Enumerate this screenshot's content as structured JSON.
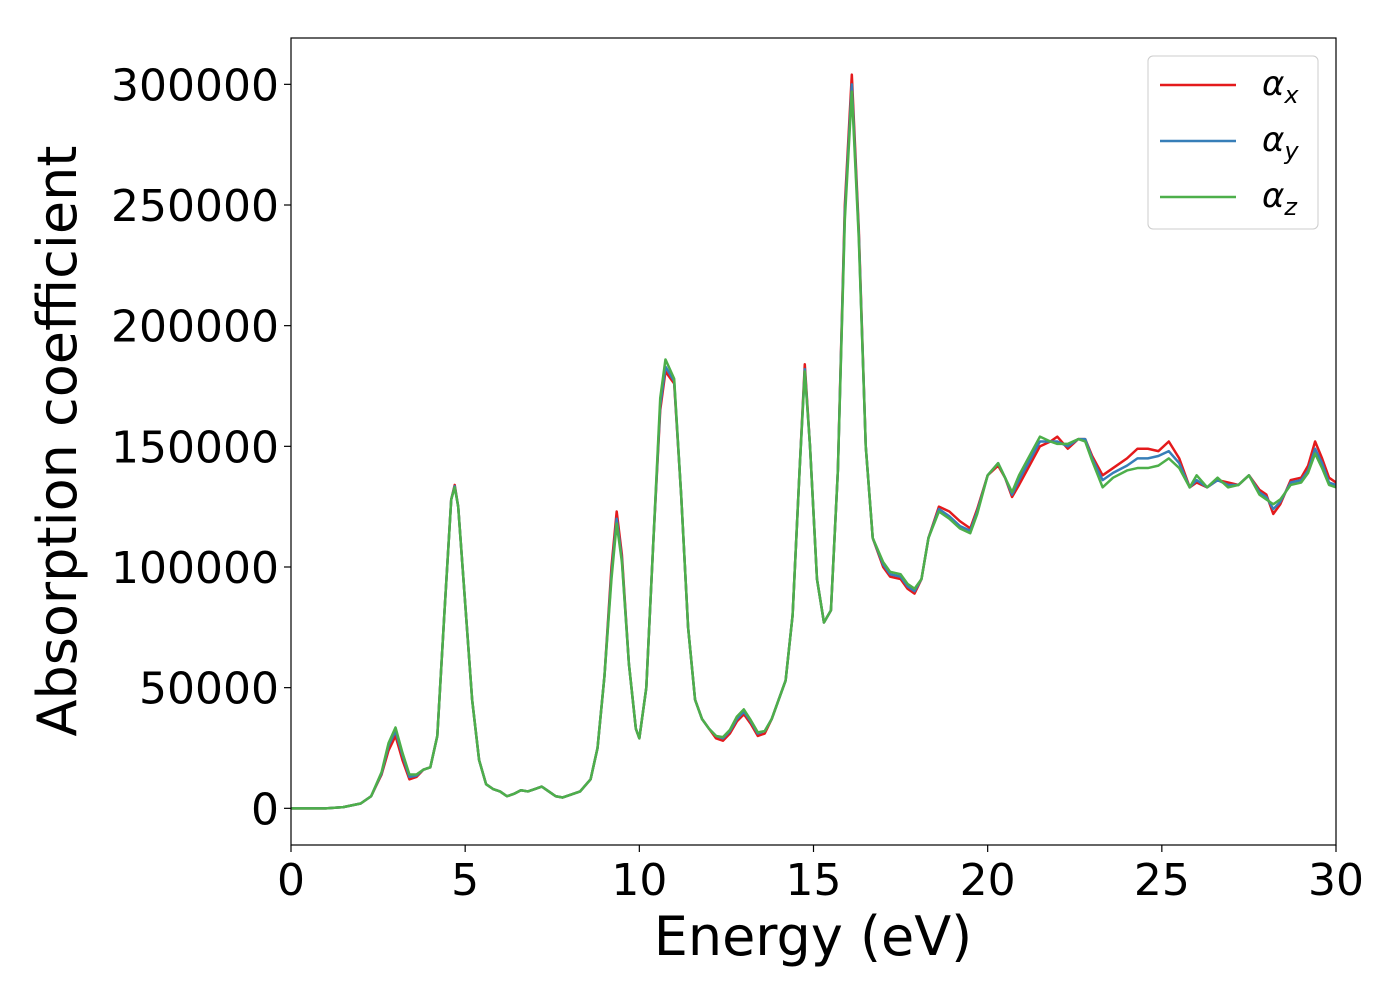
{
  "chart_data": {
    "type": "line",
    "x_label": "Energy (eV)",
    "y_label": "Absorption coefficient",
    "x": [
      0,
      1,
      1.5,
      2,
      2.3,
      2.6,
      2.8,
      3.0,
      3.2,
      3.4,
      3.6,
      3.8,
      4.0,
      4.2,
      4.4,
      4.6,
      4.7,
      4.8,
      5.0,
      5.2,
      5.4,
      5.6,
      5.8,
      6.0,
      6.2,
      6.4,
      6.6,
      6.8,
      7.0,
      7.2,
      7.4,
      7.6,
      7.8,
      8.0,
      8.3,
      8.6,
      8.8,
      9.0,
      9.2,
      9.35,
      9.5,
      9.7,
      9.9,
      10.0,
      10.2,
      10.4,
      10.6,
      10.75,
      11.0,
      11.2,
      11.4,
      11.6,
      11.8,
      12.0,
      12.2,
      12.4,
      12.6,
      12.8,
      13.0,
      13.2,
      13.4,
      13.6,
      13.8,
      14.0,
      14.2,
      14.4,
      14.6,
      14.75,
      14.9,
      15.1,
      15.3,
      15.5,
      15.7,
      15.9,
      16.1,
      16.3,
      16.5,
      16.7,
      17.0,
      17.2,
      17.5,
      17.7,
      17.9,
      18.1,
      18.3,
      18.6,
      18.9,
      19.2,
      19.5,
      19.7,
      20.0,
      20.3,
      20.5,
      20.7,
      20.9,
      21.2,
      21.5,
      21.8,
      22.0,
      22.3,
      22.6,
      22.8,
      23.0,
      23.3,
      23.6,
      24.0,
      24.3,
      24.6,
      24.9,
      25.2,
      25.5,
      25.8,
      26.0,
      26.3,
      26.6,
      26.9,
      27.2,
      27.5,
      27.8,
      28.0,
      28.2,
      28.4,
      28.7,
      29.0,
      29.2,
      29.4,
      29.6,
      29.8,
      30.0
    ],
    "series": [
      {
        "name": "αx",
        "color": "#e41a1c",
        "values": [
          0,
          0,
          500,
          2000,
          5000,
          14000,
          24000,
          30000,
          20000,
          12000,
          13000,
          16000,
          17000,
          30000,
          80000,
          128000,
          134000,
          125000,
          85000,
          45000,
          20000,
          10000,
          8000,
          7000,
          5000,
          6000,
          7500,
          7000,
          8000,
          9000,
          7000,
          5000,
          4500,
          5500,
          7000,
          12000,
          25000,
          55000,
          100000,
          123000,
          105000,
          60000,
          33000,
          29000,
          50000,
          110000,
          165000,
          181000,
          176000,
          130000,
          75000,
          45000,
          37000,
          33000,
          29000,
          28000,
          31000,
          36000,
          39000,
          35000,
          30000,
          31000,
          37000,
          45000,
          53000,
          80000,
          140000,
          184000,
          150000,
          95000,
          77000,
          82000,
          140000,
          250000,
          304000,
          240000,
          150000,
          112000,
          100000,
          96000,
          95000,
          91000,
          89000,
          95000,
          112000,
          125000,
          123000,
          119000,
          116000,
          124000,
          138000,
          142000,
          137000,
          129000,
          134000,
          142000,
          150000,
          152000,
          154000,
          149000,
          153000,
          153000,
          146000,
          138000,
          141000,
          145000,
          149000,
          149000,
          148000,
          152000,
          145000,
          133000,
          135000,
          133000,
          136000,
          135000,
          134000,
          138000,
          132000,
          130000,
          122000,
          126000,
          136000,
          137000,
          142000,
          152000,
          145000,
          137000,
          135000
        ]
      },
      {
        "name": "αy",
        "color": "#377eb8",
        "values": [
          0,
          0,
          500,
          2000,
          5000,
          14500,
          26000,
          32000,
          22000,
          13000,
          13500,
          16000,
          17000,
          30000,
          80000,
          128000,
          133500,
          125000,
          85000,
          45000,
          20000,
          10000,
          8000,
          7000,
          5000,
          6000,
          7500,
          7000,
          8000,
          9000,
          7000,
          5000,
          4500,
          5500,
          7000,
          12000,
          25000,
          55000,
          97000,
          120000,
          103000,
          60000,
          33000,
          29000,
          50000,
          110000,
          167000,
          183000,
          177000,
          130000,
          75000,
          45000,
          37000,
          33000,
          30000,
          29000,
          32000,
          37000,
          40000,
          36000,
          31000,
          32000,
          37000,
          45000,
          53000,
          80000,
          140000,
          182000,
          150000,
          95000,
          77000,
          82000,
          140000,
          247000,
          300000,
          238000,
          150000,
          112000,
          101000,
          97000,
          96000,
          92000,
          90000,
          95000,
          112000,
          124000,
          121000,
          117000,
          115000,
          123000,
          138000,
          143000,
          137000,
          130000,
          136000,
          144000,
          152000,
          152000,
          152000,
          150000,
          153000,
          153000,
          145000,
          136000,
          139000,
          142000,
          145000,
          145000,
          146000,
          148000,
          143000,
          133000,
          136000,
          133000,
          136000,
          134000,
          134000,
          138000,
          131000,
          129000,
          124000,
          127000,
          135000,
          136000,
          140000,
          149000,
          143000,
          135000,
          134000
        ]
      },
      {
        "name": "αz",
        "color": "#4daf4a",
        "values": [
          0,
          0,
          500,
          2000,
          5000,
          15000,
          27000,
          33500,
          23000,
          14000,
          14000,
          16000,
          17000,
          30000,
          80000,
          128000,
          133000,
          125000,
          85000,
          45000,
          20000,
          10000,
          8000,
          7000,
          5000,
          6000,
          7500,
          7000,
          8000,
          9000,
          7000,
          5000,
          4500,
          5500,
          7000,
          12000,
          25000,
          55000,
          95000,
          118000,
          102000,
          60000,
          33000,
          29000,
          50000,
          110000,
          170000,
          186000,
          178000,
          130000,
          75000,
          45000,
          37000,
          33000,
          30000,
          29500,
          32500,
          38000,
          41000,
          36500,
          31500,
          32000,
          37000,
          45000,
          53000,
          80000,
          140000,
          181000,
          150000,
          95000,
          77000,
          82000,
          140000,
          244000,
          297000,
          236000,
          150000,
          112000,
          102000,
          98000,
          97000,
          93000,
          91000,
          95000,
          112000,
          123000,
          120000,
          116000,
          114000,
          122000,
          138000,
          143000,
          137000,
          131000,
          138000,
          146000,
          154000,
          152000,
          151000,
          151000,
          153000,
          152000,
          144000,
          133000,
          137000,
          140000,
          141000,
          141000,
          142000,
          145000,
          141000,
          133000,
          138000,
          133000,
          137000,
          133000,
          134000,
          138000,
          130000,
          128000,
          126000,
          128000,
          134000,
          135000,
          139000,
          147000,
          141000,
          134000,
          133000
        ]
      }
    ],
    "xlim": [
      0,
      30
    ],
    "xticks": [
      0,
      5,
      10,
      15,
      20,
      25,
      30
    ],
    "ylim": [
      -15200,
      319200
    ],
    "yticks": [
      0,
      50000,
      100000,
      150000,
      200000,
      250000,
      300000
    ],
    "legend": "upper right",
    "grid": false
  }
}
